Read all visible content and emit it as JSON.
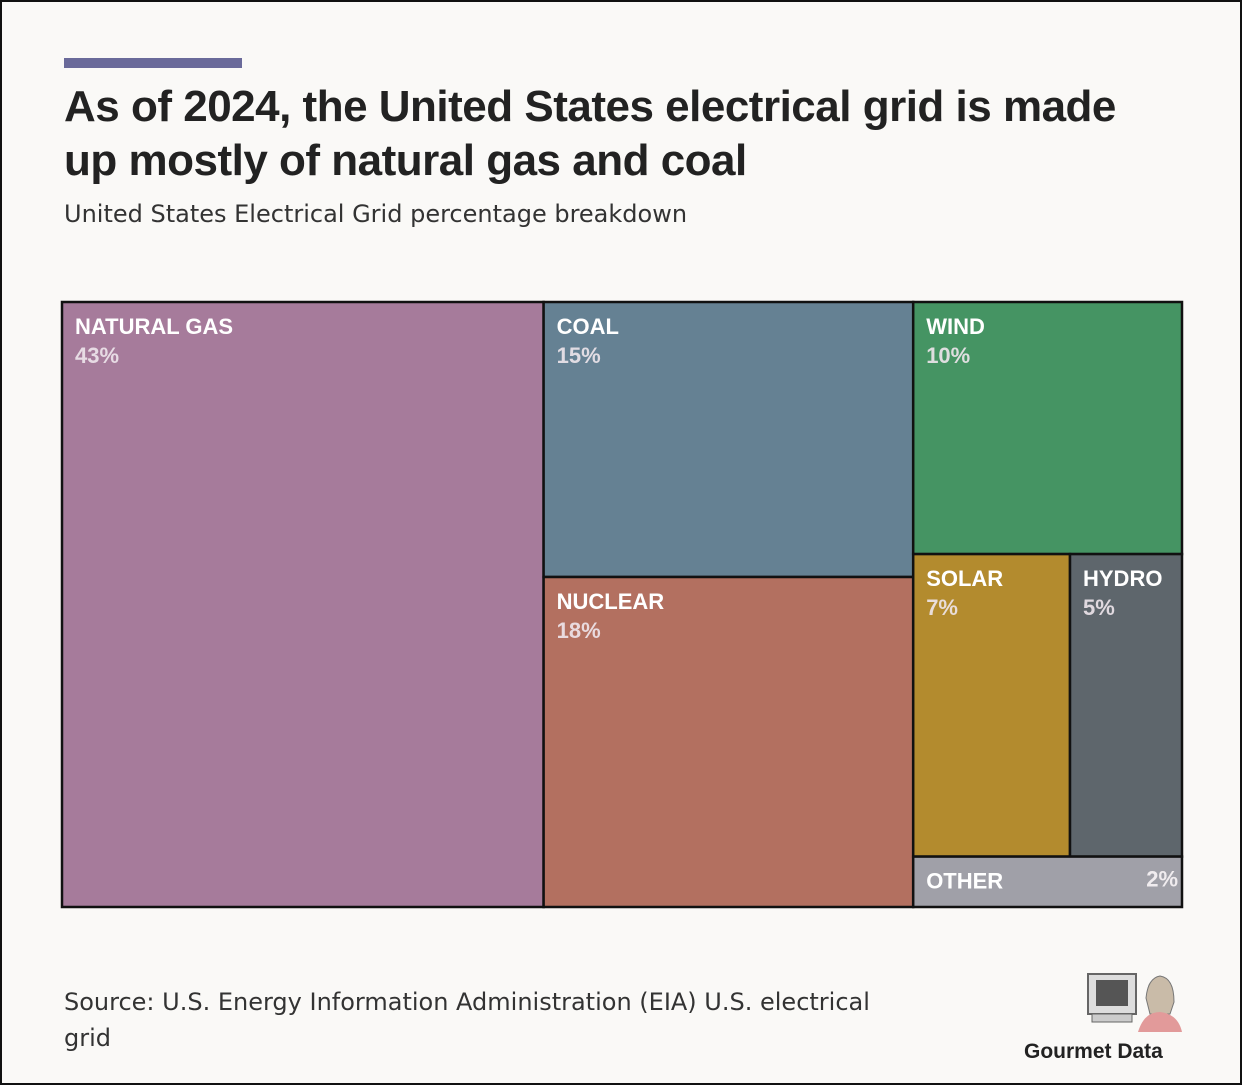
{
  "chart_data": {
    "type": "treemap",
    "title": "As of 2024, the United States electrical grid is made up mostly of natural gas and coal",
    "subtitle": "United States Electrical Grid percentage breakdown",
    "categories": [
      "NATURAL GAS",
      "COAL",
      "NUCLEAR",
      "WIND",
      "SOLAR",
      "HYDRO",
      "OTHER"
    ],
    "values": [
      43,
      15,
      18,
      10,
      7,
      5,
      2
    ],
    "value_labels": [
      "43%",
      "15%",
      "18%",
      "10%",
      "7%",
      "5%",
      "2%"
    ],
    "colors": [
      "#a67b9b",
      "#658193",
      "#b37060",
      "#459463",
      "#b38b2e",
      "#5e666c",
      "#a0a0a8"
    ],
    "source": "Source: U.S. Energy Information Administration (EIA) U.S. electrical grid",
    "brand": "Gourmet Data"
  }
}
